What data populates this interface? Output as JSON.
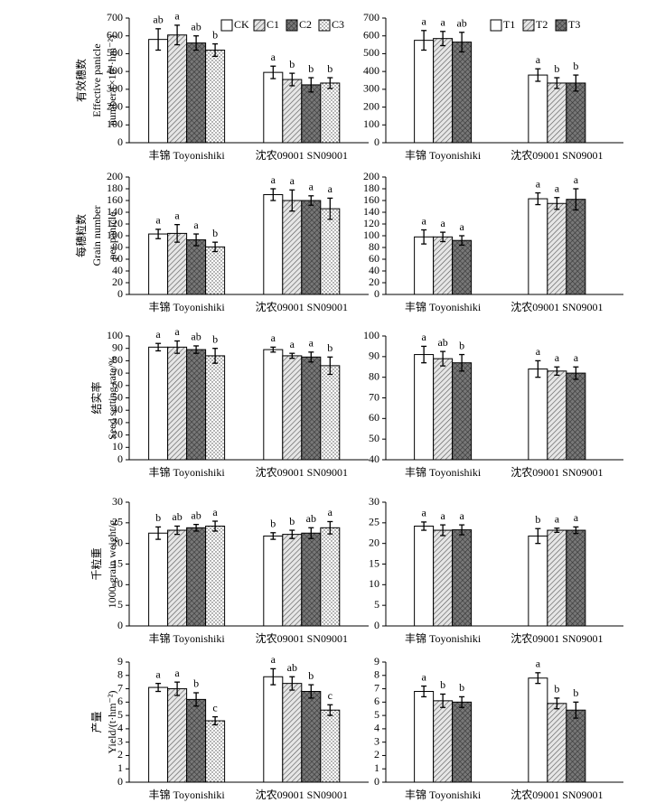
{
  "chart_data": [
    {
      "type": "bar",
      "ylabel": [
        "有效穗数",
        "Effective panicle",
        "number/(×10⁴·hm⁻²)"
      ],
      "legend": "top-right",
      "categories": [
        "丰锦 Toyonishiki",
        "沈农09001 SN09001"
      ],
      "ylim": [
        0,
        700
      ],
      "yticks": [
        0,
        100,
        200,
        300,
        400,
        500,
        600,
        700
      ],
      "series": [
        {
          "name": "CK",
          "color": "#ffffff",
          "pattern": "none",
          "values": [
            580,
            395
          ],
          "errors": [
            60,
            35
          ],
          "labels": [
            "ab",
            "a"
          ]
        },
        {
          "name": "C1",
          "color": "#d9d9d9",
          "pattern": "hatch",
          "values": [
            605,
            355
          ],
          "errors": [
            55,
            35
          ],
          "labels": [
            "a",
            "b"
          ]
        },
        {
          "name": "C2",
          "color": "#8c8c8c",
          "pattern": "cross",
          "values": [
            560,
            325
          ],
          "errors": [
            40,
            40
          ],
          "labels": [
            "ab",
            "b"
          ]
        },
        {
          "name": "C3",
          "color": "#ffffff",
          "pattern": "dots",
          "values": [
            520,
            335
          ],
          "errors": [
            35,
            30
          ],
          "labels": [
            "b",
            "b"
          ]
        }
      ]
    },
    {
      "type": "bar",
      "legend": "top-right",
      "categories": [
        "丰锦 Toyonishiki",
        "沈农09001 SN09001"
      ],
      "ylim": [
        0,
        700
      ],
      "yticks": [
        0,
        100,
        200,
        300,
        400,
        500,
        600,
        700
      ],
      "series": [
        {
          "name": "T1",
          "color": "#ffffff",
          "pattern": "none",
          "values": [
            575,
            380
          ],
          "errors": [
            55,
            35
          ],
          "labels": [
            "a",
            "a"
          ]
        },
        {
          "name": "T2",
          "color": "#d9d9d9",
          "pattern": "hatch",
          "values": [
            585,
            335
          ],
          "errors": [
            40,
            30
          ],
          "labels": [
            "a",
            "b"
          ]
        },
        {
          "name": "T3",
          "color": "#8c8c8c",
          "pattern": "cross",
          "values": [
            565,
            335
          ],
          "errors": [
            55,
            45
          ],
          "labels": [
            "ab",
            "b"
          ]
        }
      ]
    },
    {
      "type": "bar",
      "ylabel": [
        "每穗粒数",
        "Grain number",
        "per panicle"
      ],
      "categories": [
        "丰锦 Toyonishiki",
        "沈农09001 SN09001"
      ],
      "ylim": [
        0,
        200
      ],
      "yticks": [
        0,
        20,
        40,
        60,
        80,
        100,
        120,
        140,
        160,
        180,
        200
      ],
      "series": [
        {
          "color": "#ffffff",
          "pattern": "none",
          "values": [
            103,
            170
          ],
          "errors": [
            8,
            10
          ],
          "labels": [
            "a",
            "a"
          ]
        },
        {
          "color": "#d9d9d9",
          "pattern": "hatch",
          "values": [
            104,
            160
          ],
          "errors": [
            15,
            18
          ],
          "labels": [
            "a",
            "a"
          ]
        },
        {
          "color": "#8c8c8c",
          "pattern": "cross",
          "values": [
            93,
            160
          ],
          "errors": [
            10,
            8
          ],
          "labels": [
            "a",
            "a"
          ]
        },
        {
          "color": "#ffffff",
          "pattern": "dots",
          "values": [
            81,
            146
          ],
          "errors": [
            8,
            18
          ],
          "labels": [
            "b",
            "a"
          ]
        }
      ]
    },
    {
      "type": "bar",
      "categories": [
        "丰锦 Toyonishiki",
        "沈农09001 SN09001"
      ],
      "ylim": [
        0,
        200
      ],
      "yticks": [
        0,
        20,
        40,
        60,
        80,
        100,
        120,
        140,
        160,
        180,
        200
      ],
      "series": [
        {
          "color": "#ffffff",
          "pattern": "none",
          "values": [
            98,
            163
          ],
          "errors": [
            12,
            10
          ],
          "labels": [
            "a",
            "a"
          ]
        },
        {
          "color": "#d9d9d9",
          "pattern": "hatch",
          "values": [
            98,
            155
          ],
          "errors": [
            8,
            10
          ],
          "labels": [
            "a",
            "a"
          ]
        },
        {
          "color": "#8c8c8c",
          "pattern": "cross",
          "values": [
            92,
            162
          ],
          "errors": [
            8,
            18
          ],
          "labels": [
            "a",
            "a"
          ]
        }
      ]
    },
    {
      "type": "bar",
      "ylabel": [
        "结实率",
        "Seed setting rate/%"
      ],
      "categories": [
        "丰锦 Toyonishiki",
        "沈农09001 SN09001"
      ],
      "ylim": [
        0,
        100
      ],
      "yticks": [
        0,
        10,
        20,
        30,
        40,
        50,
        60,
        70,
        80,
        90,
        100
      ],
      "series": [
        {
          "color": "#ffffff",
          "pattern": "none",
          "values": [
            91,
            89
          ],
          "errors": [
            3,
            2
          ],
          "labels": [
            "a",
            "a"
          ]
        },
        {
          "color": "#d9d9d9",
          "pattern": "hatch",
          "values": [
            91,
            84
          ],
          "errors": [
            5,
            2
          ],
          "labels": [
            "a",
            "a"
          ]
        },
        {
          "color": "#8c8c8c",
          "pattern": "cross",
          "values": [
            89,
            83
          ],
          "errors": [
            3,
            4
          ],
          "labels": [
            "ab",
            "a"
          ]
        },
        {
          "color": "#ffffff",
          "pattern": "dots",
          "values": [
            84,
            76
          ],
          "errors": [
            6,
            7
          ],
          "labels": [
            "b",
            "b"
          ]
        }
      ]
    },
    {
      "type": "bar",
      "categories": [
        "丰锦 Toyonishiki",
        "沈农09001 SN09001"
      ],
      "ylim": [
        40,
        100
      ],
      "yticks": [
        40,
        50,
        60,
        70,
        80,
        90,
        100
      ],
      "series": [
        {
          "color": "#ffffff",
          "pattern": "none",
          "values": [
            91,
            84
          ],
          "errors": [
            4,
            4
          ],
          "labels": [
            "a",
            "a"
          ]
        },
        {
          "color": "#d9d9d9",
          "pattern": "hatch",
          "values": [
            89,
            83
          ],
          "errors": [
            3.5,
            2
          ],
          "labels": [
            "ab",
            "a"
          ]
        },
        {
          "color": "#8c8c8c",
          "pattern": "cross",
          "values": [
            87,
            82
          ],
          "errors": [
            4,
            3
          ],
          "labels": [
            "b",
            "a"
          ]
        }
      ]
    },
    {
      "type": "bar",
      "ylabel": [
        "千粒重",
        "1000-grain weight/g"
      ],
      "categories": [
        "丰锦 Toyonishiki",
        "沈农09001 SN09001"
      ],
      "ylim": [
        0,
        30
      ],
      "yticks": [
        0,
        5,
        10,
        15,
        20,
        25,
        30
      ],
      "series": [
        {
          "color": "#ffffff",
          "pattern": "none",
          "values": [
            22.5,
            21.8
          ],
          "errors": [
            1.5,
            0.8
          ],
          "labels": [
            "b",
            "b"
          ]
        },
        {
          "color": "#d9d9d9",
          "pattern": "hatch",
          "values": [
            23.2,
            22.2
          ],
          "errors": [
            1,
            1
          ],
          "labels": [
            "ab",
            "b"
          ]
        },
        {
          "color": "#8c8c8c",
          "pattern": "cross",
          "values": [
            23.8,
            22.5
          ],
          "errors": [
            0.8,
            1.3
          ],
          "labels": [
            "ab",
            "ab"
          ]
        },
        {
          "color": "#ffffff",
          "pattern": "dots",
          "values": [
            24.2,
            23.8
          ],
          "errors": [
            1.2,
            1.5
          ],
          "labels": [
            "a",
            "a"
          ]
        }
      ]
    },
    {
      "type": "bar",
      "categories": [
        "丰锦 Toyonishiki",
        "沈农09001 SN09001"
      ],
      "ylim": [
        0,
        30
      ],
      "yticks": [
        0,
        5,
        10,
        15,
        20,
        25,
        30
      ],
      "series": [
        {
          "color": "#ffffff",
          "pattern": "none",
          "values": [
            24.2,
            21.8
          ],
          "errors": [
            1,
            1.8
          ],
          "labels": [
            "a",
            "b"
          ]
        },
        {
          "color": "#d9d9d9",
          "pattern": "hatch",
          "values": [
            23.2,
            23.2
          ],
          "errors": [
            1.3,
            0.5
          ],
          "labels": [
            "a",
            "a"
          ]
        },
        {
          "color": "#8c8c8c",
          "pattern": "cross",
          "values": [
            23.3,
            23.2
          ],
          "errors": [
            1.2,
            0.8
          ],
          "labels": [
            "a",
            "a"
          ]
        }
      ]
    },
    {
      "type": "bar",
      "ylabel": [
        "产量",
        "Yield/(t·hm⁻²)"
      ],
      "categories": [
        "丰锦 Toyonishiki",
        "沈农09001 SN09001"
      ],
      "ylim": [
        0,
        9
      ],
      "yticks": [
        0,
        1,
        2,
        3,
        4,
        5,
        6,
        7,
        8,
        9
      ],
      "series": [
        {
          "color": "#ffffff",
          "pattern": "none",
          "values": [
            7.1,
            7.9
          ],
          "errors": [
            0.3,
            0.6
          ],
          "labels": [
            "a",
            "a"
          ]
        },
        {
          "color": "#d9d9d9",
          "pattern": "hatch",
          "values": [
            7.0,
            7.4
          ],
          "errors": [
            0.5,
            0.5
          ],
          "labels": [
            "a",
            "ab"
          ]
        },
        {
          "color": "#8c8c8c",
          "pattern": "cross",
          "values": [
            6.2,
            6.8
          ],
          "errors": [
            0.5,
            0.5
          ],
          "labels": [
            "b",
            "b"
          ]
        },
        {
          "color": "#ffffff",
          "pattern": "dots",
          "values": [
            4.6,
            5.4
          ],
          "errors": [
            0.3,
            0.4
          ],
          "labels": [
            "c",
            "c"
          ]
        }
      ]
    },
    {
      "type": "bar",
      "categories": [
        "丰锦 Toyonishiki",
        "沈农09001 SN09001"
      ],
      "ylim": [
        0,
        9
      ],
      "yticks": [
        0,
        1,
        2,
        3,
        4,
        5,
        6,
        7,
        8,
        9
      ],
      "series": [
        {
          "color": "#ffffff",
          "pattern": "none",
          "values": [
            6.8,
            7.8
          ],
          "errors": [
            0.4,
            0.4
          ],
          "labels": [
            "a",
            "a"
          ]
        },
        {
          "color": "#d9d9d9",
          "pattern": "hatch",
          "values": [
            6.1,
            5.9
          ],
          "errors": [
            0.5,
            0.4
          ],
          "labels": [
            "b",
            "b"
          ]
        },
        {
          "color": "#8c8c8c",
          "pattern": "cross",
          "values": [
            6.0,
            5.4
          ],
          "errors": [
            0.4,
            0.6
          ],
          "labels": [
            "b",
            "b"
          ]
        }
      ]
    }
  ]
}
